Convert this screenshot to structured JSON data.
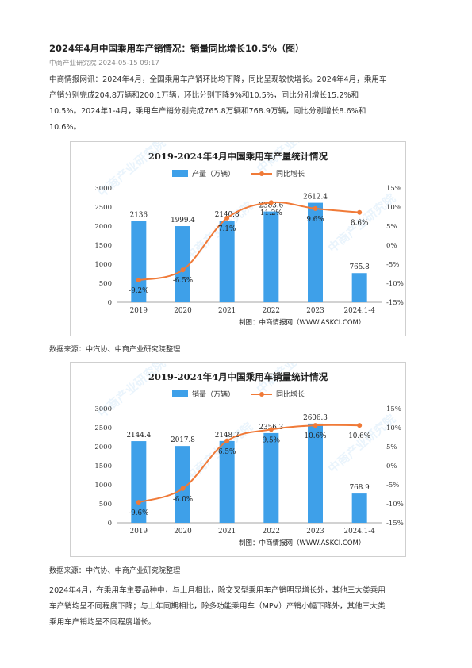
{
  "article": {
    "title": "2024年4月中国乘用车产销情况：销量同比增长10.5%（图）",
    "meta": "中商产业研究院 2024-05-15 09:17",
    "intro_lines": [
      "中商情报网讯：2024年4月，全国乘用车产销环比均下降，同比呈现较快增长。2024年4月，乘用车",
      "产销分别完成204.8万辆和200.1万辆，环比分别下降9%和10.5%，同比分别增长15.2%和",
      "10.5%。2024年1-4月，乘用车产销分别完成765.8万辆和768.9万辆，同比分别增长8.6%和",
      "10.6%。"
    ],
    "source1": "数据来源：中汽协、中商产业研究院整理",
    "source2": "数据来源：中汽协、中商产业研究院整理",
    "outro_lines": [
      "2024年4月，在乘用车主要品种中，与上月相比，除交叉型乘用车产销明显增长外，其他三大类乘用",
      "车产销均呈不同程度下降；与上年同期相比，除多功能乘用车（MPV）产销小幅下降外，其他三大类",
      "乘用车产销均呈不同程度增长。"
    ]
  },
  "colors": {
    "bar": "#3ea0e9",
    "line": "#f07a38",
    "title": "#222222",
    "axis": "#555555"
  },
  "chart_data": [
    {
      "type": "bar",
      "title": "2019-2024年4月中国乘用车产量统计情况",
      "categories": [
        "2019",
        "2020",
        "2021",
        "2022",
        "2023",
        "2024.1-4"
      ],
      "bar_series": {
        "name": "产量（万辆）",
        "values": [
          2136,
          1999.4,
          2140.8,
          2383.6,
          2612.4,
          765.8
        ],
        "labels": [
          "2136",
          "1999.4",
          "2140.8",
          "2383.6",
          "2612.4",
          "765.8"
        ]
      },
      "line_series": {
        "name": "同比增长",
        "values": [
          -9.2,
          -6.5,
          7.1,
          11.2,
          9.6,
          8.6
        ],
        "labels": [
          "-9.2%",
          "-6.5%",
          "7.1%",
          "11.2%",
          "9.6%",
          "8.6%"
        ]
      },
      "ylim_left": [
        0,
        3000
      ],
      "yticks_left": [
        "0",
        "500",
        "1000",
        "1500",
        "2000",
        "2500",
        "3000"
      ],
      "ylim_right": [
        -15,
        15
      ],
      "yticks_right": [
        "-15%",
        "-10%",
        "-5%",
        "0%",
        "5%",
        "10%",
        "15%"
      ],
      "credit": "制图：中商情报网（WWW.ASKCI.COM）",
      "watermark": "中商产业研究院",
      "legend": "top-center"
    },
    {
      "type": "bar",
      "title": "2019-2024年4月中国乘用车销量统计情况",
      "categories": [
        "2019",
        "2020",
        "2021",
        "2022",
        "2023",
        "2024.1-4"
      ],
      "bar_series": {
        "name": "销量（万辆）",
        "values": [
          2144.4,
          2017.8,
          2148.2,
          2356.3,
          2606.3,
          768.9
        ],
        "labels": [
          "2144.4",
          "2017.8",
          "2148.2",
          "2356.3",
          "2606.3",
          "768.9"
        ]
      },
      "line_series": {
        "name": "同比增长",
        "values": [
          -9.6,
          -6.0,
          6.5,
          9.5,
          10.6,
          10.6
        ],
        "labels": [
          "-9.6%",
          "-6.0%",
          "6.5%",
          "9.5%",
          "10.6%",
          "10.6%"
        ]
      },
      "ylim_left": [
        0,
        3000
      ],
      "yticks_left": [
        "0",
        "500",
        "1000",
        "1500",
        "2000",
        "2500",
        "3000"
      ],
      "ylim_right": [
        -15,
        15
      ],
      "yticks_right": [
        "-15%",
        "-10%",
        "-5%",
        "0%",
        "5%",
        "10%",
        "15%"
      ],
      "credit": "制图：中商情报网（WWW.ASKCI.COM）",
      "watermark": "中商产业研究院",
      "legend": "top-center"
    }
  ]
}
